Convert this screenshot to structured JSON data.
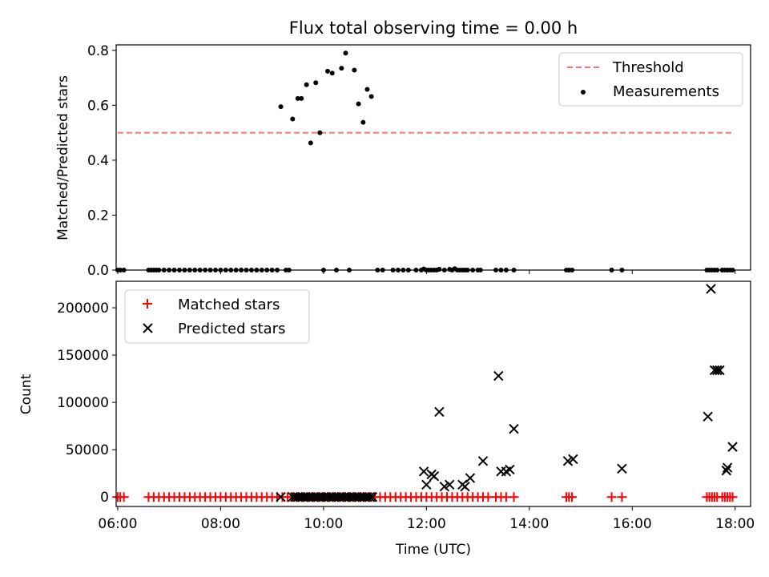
{
  "figure": {
    "title": "Flux total observing time = 0.00 h",
    "xlabel": "Time (UTC)"
  },
  "chart_data": [
    {
      "type": "scatter",
      "ylabel": "Matched/Predicted stars",
      "xlim": [
        5.97,
        18.3
      ],
      "ylim": [
        0,
        0.82
      ],
      "yticks": [
        0.0,
        0.2,
        0.4,
        0.6,
        0.8
      ],
      "ytick_labels": [
        "0.0",
        "0.2",
        "0.4",
        "0.6",
        "0.8"
      ],
      "xticks": [
        6,
        8,
        10,
        12,
        14,
        16,
        18
      ],
      "legend_placement": "upper right",
      "legend": [
        "Threshold",
        "Measurements"
      ],
      "threshold": {
        "name": "Threshold",
        "value": 0.5,
        "x_range": [
          6.0,
          17.97
        ],
        "color": "#ff7070",
        "style": "dashed"
      },
      "series": [
        {
          "name": "Measurements",
          "color": "#000000",
          "x": [
            6.0,
            6.05,
            6.12,
            6.6,
            6.65,
            6.7,
            6.75,
            6.8,
            6.9,
            7.0,
            7.1,
            7.2,
            7.3,
            7.4,
            7.5,
            7.6,
            7.7,
            7.8,
            7.9,
            8.0,
            8.1,
            8.2,
            8.3,
            8.4,
            8.5,
            8.6,
            8.7,
            8.8,
            8.9,
            9.0,
            9.1,
            9.27,
            9.33,
            9.17,
            9.4,
            9.5,
            9.57,
            9.67,
            9.75,
            9.85,
            9.93,
            10.08,
            10.17,
            10.35,
            10.43,
            10.6,
            10.68,
            10.77,
            10.85,
            10.93,
            10.0,
            10.25,
            10.5,
            11.05,
            11.15,
            11.35,
            11.45,
            11.55,
            11.65,
            11.8,
            11.9,
            11.95,
            12.0,
            12.05,
            12.1,
            12.15,
            12.2,
            12.25,
            12.35,
            12.45,
            12.5,
            12.55,
            12.6,
            12.65,
            12.7,
            12.75,
            12.8,
            12.9,
            13.0,
            13.05,
            13.35,
            13.45,
            13.55,
            13.7,
            14.72,
            14.77,
            14.83,
            15.6,
            15.8,
            17.45,
            17.5,
            17.55,
            17.6,
            17.65,
            17.75,
            17.8,
            17.85,
            17.9,
            17.95
          ],
          "y": [
            0,
            0,
            0,
            0,
            0,
            0,
            0,
            0,
            0,
            0,
            0,
            0,
            0,
            0,
            0,
            0,
            0,
            0,
            0,
            0,
            0,
            0,
            0,
            0,
            0,
            0,
            0,
            0,
            0,
            0,
            0,
            0,
            0,
            0.595,
            0.55,
            0.625,
            0.625,
            0.675,
            0.463,
            0.682,
            0.5,
            0.724,
            0.717,
            0.735,
            0.79,
            0.728,
            0.605,
            0.538,
            0.658,
            0.632,
            0,
            0,
            0,
            0,
            0,
            0,
            0,
            0,
            0,
            0,
            0,
            0.004,
            0,
            0,
            0,
            0,
            0,
            0.003,
            0,
            0.003,
            0,
            0.005,
            0,
            0,
            0,
            0,
            0,
            0,
            0,
            0,
            0,
            0,
            0,
            0,
            0,
            0,
            0,
            0,
            0,
            0,
            0,
            0,
            0,
            0,
            0,
            0,
            0,
            0,
            0
          ]
        }
      ]
    },
    {
      "type": "scatter",
      "ylabel": "Count",
      "xlim": [
        5.97,
        18.3
      ],
      "ylim": [
        -10000,
        228000
      ],
      "yticks": [
        0,
        50000,
        100000,
        150000,
        200000
      ],
      "ytick_labels": [
        "0",
        "50000",
        "100000",
        "150000",
        "200000"
      ],
      "xticks": [
        6,
        8,
        10,
        12,
        14,
        16,
        18
      ],
      "xtick_labels": [
        "06:00",
        "08:00",
        "10:00",
        "12:00",
        "14:00",
        "16:00",
        "18:00"
      ],
      "legend_placement": "upper left",
      "legend": [
        "Matched stars",
        "Predicted stars"
      ],
      "series": [
        {
          "name": "Matched stars",
          "marker": "plus",
          "color": "#ff0000",
          "x": [
            6.0,
            6.05,
            6.12,
            6.6,
            6.7,
            6.8,
            6.9,
            7.0,
            7.1,
            7.2,
            7.3,
            7.4,
            7.5,
            7.6,
            7.7,
            7.8,
            7.9,
            8.0,
            8.1,
            8.2,
            8.3,
            8.4,
            8.5,
            8.6,
            8.7,
            8.8,
            8.9,
            9.0,
            9.1,
            9.2,
            9.3,
            9.4,
            9.5,
            9.6,
            9.7,
            9.8,
            9.9,
            10.0,
            10.1,
            10.2,
            10.3,
            10.4,
            10.5,
            10.6,
            10.7,
            10.8,
            10.9,
            11.0,
            11.1,
            11.2,
            11.3,
            11.4,
            11.5,
            11.6,
            11.7,
            11.8,
            11.9,
            12.0,
            12.1,
            12.2,
            12.3,
            12.4,
            12.5,
            12.6,
            12.7,
            12.8,
            12.9,
            13.0,
            13.1,
            13.2,
            13.35,
            13.45,
            13.55,
            13.7,
            14.72,
            14.77,
            14.83,
            15.6,
            15.8,
            17.45,
            17.5,
            17.55,
            17.6,
            17.65,
            17.75,
            17.8,
            17.85,
            17.9,
            17.95
          ],
          "y": [
            0,
            0,
            0,
            0,
            0,
            0,
            0,
            0,
            0,
            0,
            0,
            0,
            0,
            0,
            0,
            0,
            0,
            0,
            0,
            0,
            0,
            0,
            0,
            0,
            0,
            0,
            0,
            0,
            0,
            0,
            0,
            0,
            0,
            0,
            0,
            0,
            0,
            0,
            0,
            0,
            0,
            0,
            0,
            0,
            0,
            0,
            0,
            0,
            0,
            0,
            0,
            0,
            0,
            0,
            0,
            0,
            0,
            0,
            0,
            0,
            0,
            0,
            0,
            0,
            0,
            0,
            0,
            0,
            0,
            0,
            0,
            0,
            0,
            0,
            0,
            0,
            0,
            0,
            0,
            0,
            0,
            0,
            0,
            0,
            0,
            0,
            0,
            0,
            0
          ]
        },
        {
          "name": "Predicted stars",
          "marker": "x",
          "color": "#000000",
          "x": [
            9.17,
            9.4,
            9.45,
            9.5,
            9.55,
            9.6,
            9.65,
            9.7,
            9.75,
            9.8,
            9.85,
            9.9,
            9.95,
            10.0,
            10.05,
            10.1,
            10.15,
            10.2,
            10.25,
            10.3,
            10.35,
            10.4,
            10.45,
            10.5,
            10.55,
            10.6,
            10.65,
            10.7,
            10.75,
            10.8,
            10.85,
            10.9,
            10.95,
            11.95,
            12.0,
            12.1,
            12.15,
            12.25,
            12.35,
            12.45,
            12.7,
            12.75,
            12.85,
            13.1,
            13.4,
            13.45,
            13.55,
            13.62,
            13.7,
            14.75,
            14.85,
            15.8,
            17.47,
            17.53,
            17.6,
            17.65,
            17.7,
            17.83,
            17.85,
            17.95
          ],
          "y": [
            0,
            0,
            0,
            0,
            0,
            0,
            0,
            0,
            0,
            0,
            0,
            0,
            0,
            0,
            0,
            0,
            0,
            0,
            0,
            0,
            0,
            0,
            0,
            0,
            0,
            0,
            0,
            0,
            0,
            0,
            0,
            0,
            0,
            27000,
            13000,
            24000,
            22000,
            90000,
            11000,
            13000,
            13000,
            11000,
            20000,
            38000,
            128000,
            27000,
            27000,
            29000,
            72000,
            38000,
            40000,
            30000,
            85000,
            220000,
            134000,
            134000,
            134000,
            28000,
            31000,
            53000
          ]
        }
      ]
    }
  ]
}
